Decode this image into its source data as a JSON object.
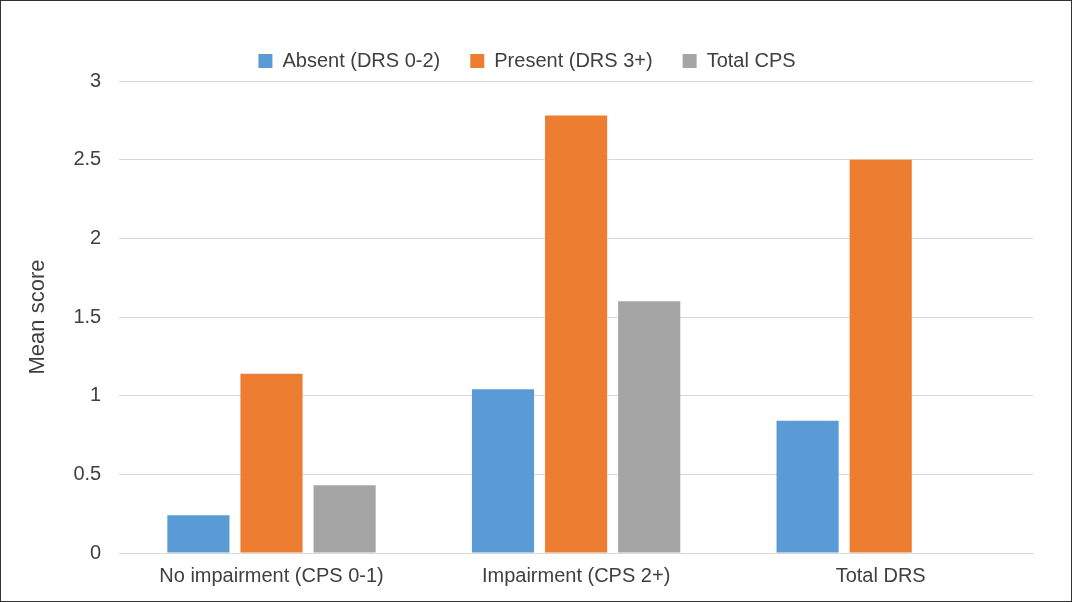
{
  "chart_data": {
    "type": "bar",
    "ylabel": "Mean score",
    "categories": [
      "No impairment (CPS 0-1)",
      "Impairment (CPS 2+)",
      "Total DRS"
    ],
    "series": [
      {
        "name": "Absent (DRS 0-2)",
        "color": "#5b9bd5",
        "values": [
          0.24,
          1.04,
          0.84
        ]
      },
      {
        "name": "Present (DRS 3+)",
        "color": "#ed7d31",
        "values": [
          1.14,
          2.78,
          2.5
        ]
      },
      {
        "name": "Total CPS",
        "color": "#a5a5a5",
        "values": [
          0.43,
          1.6,
          null
        ]
      }
    ],
    "ylim": [
      0,
      3
    ],
    "yticks": [
      0,
      0.5,
      1,
      1.5,
      2,
      2.5,
      3
    ],
    "grid": "y",
    "legend": "top"
  }
}
